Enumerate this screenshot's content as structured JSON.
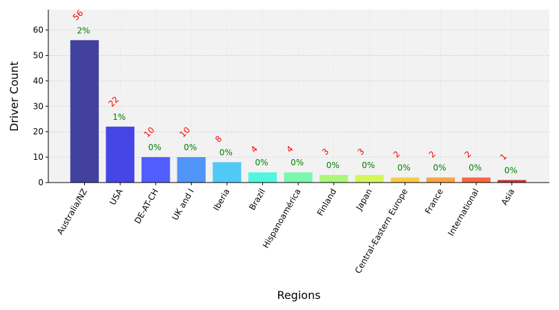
{
  "chart_data": {
    "type": "bar",
    "title": "",
    "xlabel": "Regions",
    "ylabel": "Driver Count",
    "ylim": [
      0,
      68
    ],
    "yticks": [
      0,
      10,
      20,
      30,
      40,
      50,
      60
    ],
    "grid": true,
    "categories": [
      "Australia/NZ",
      "USA",
      "DE-AT-CH",
      "UK and I",
      "Iberia",
      "Brazil",
      "Hispanoamérica",
      "Finland",
      "Japan",
      "Central-Eastern Europe",
      "France",
      "International",
      "Asia"
    ],
    "values": [
      56,
      22,
      10,
      10,
      8,
      4,
      4,
      3,
      3,
      2,
      2,
      2,
      1
    ],
    "percent_labels": [
      "2%",
      "1%",
      "0%",
      "0%",
      "0%",
      "0%",
      "0%",
      "0%",
      "0%",
      "0%",
      "0%",
      "0%",
      "0%"
    ],
    "colors": [
      "#2f2f95",
      "#3333e6",
      "#3f4cff",
      "#3e8bf7",
      "#3ec4f7",
      "#3ff6dd",
      "#6ef7a8",
      "#a2f76e",
      "#d3f54a",
      "#f7c835",
      "#f79a35",
      "#f7592d",
      "#c72424"
    ]
  }
}
